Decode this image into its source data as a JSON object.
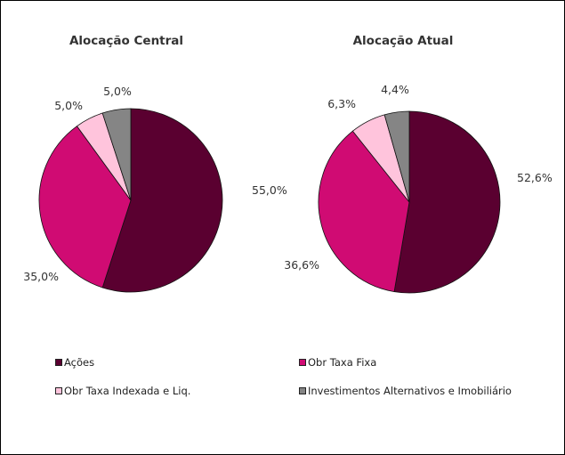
{
  "chart_data": [
    {
      "type": "pie",
      "title": "Alocação Central",
      "categories": [
        "Ações",
        "Obr Taxa Fixa",
        "Obr Taxa Indexada e Liq.",
        "Investimentos Alternativos e Imobiliário"
      ],
      "values": [
        55.0,
        35.0,
        5.0,
        5.0
      ],
      "labels": [
        "55,0%",
        "35,0%",
        "5,0%",
        "5,0%"
      ]
    },
    {
      "type": "pie",
      "title": "Alocação Atual",
      "categories": [
        "Ações",
        "Obr Taxa Fixa",
        "Obr Taxa Indexada e Liq.",
        "Investimentos Alternativos e Imobiliário"
      ],
      "values": [
        52.6,
        36.6,
        6.3,
        4.4
      ],
      "labels": [
        "52,6%",
        "36,6%",
        "6,3%",
        "4,4%"
      ]
    }
  ],
  "legend": {
    "placement": "bottom",
    "items": [
      {
        "label": "Ações",
        "color": "#5a0030"
      },
      {
        "label": "Obr Taxa Fixa",
        "color": "#d00b73"
      },
      {
        "label": "Obr Taxa Indexada e Liq.",
        "color": "#ffc4dc"
      },
      {
        "label": "Investimentos Alternativos e Imobiliário",
        "color": "#858585"
      }
    ]
  }
}
